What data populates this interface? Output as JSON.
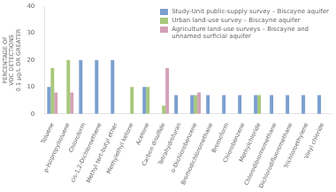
{
  "chart_data": {
    "type": "bar",
    "categories": [
      "Toluene",
      "p-Isopropyltoluene",
      "Chloroform",
      "cis-1,2-Dichloroethene",
      "Methyl tert-butyl ether",
      "Methylethyl ketone",
      "Acetone",
      "Carbon disulfide",
      "Tetrahydrofuran",
      "o-Dichlorobenzene",
      "Bromodichloromethane",
      "Bromoform",
      "Chlorobenzene",
      "Methylchloride",
      "Chlorodibromomethane",
      "Dichlorodifluoromethane",
      "Trichloroethylene",
      "Vinyl chloride"
    ],
    "series": [
      {
        "name": "Study-Unit public-supply survey – Biscayne aquifer",
        "color": "#7b9fcf",
        "values": [
          10,
          0,
          20,
          20,
          20,
          0,
          10,
          0,
          7,
          7,
          7,
          7,
          7,
          7,
          7,
          7,
          7,
          7
        ]
      },
      {
        "name": "Urban land-use survey – Biscayne aquifer",
        "color": "#a8c87a",
        "values": [
          17,
          20,
          0,
          0,
          0,
          10,
          10,
          3,
          0,
          7,
          0,
          0,
          0,
          7,
          0,
          0,
          0,
          0
        ]
      },
      {
        "name": "Agriculture land-use surveys – Biscayne and\nunnamed surficial aquifer",
        "color": "#d4a0b8",
        "values": [
          8,
          8,
          0,
          0,
          0,
          0,
          0,
          17,
          0,
          8,
          0,
          0,
          0,
          0,
          0,
          0,
          0,
          0
        ]
      }
    ],
    "ylabel": "PERCENTAGE OF\nVOC DETECTIONS\n0.1 μg/L OR GREATER",
    "ylim": [
      0,
      40
    ],
    "yticks": [
      0,
      10,
      20,
      30,
      40
    ],
    "grid": false,
    "legend": "upper right"
  }
}
